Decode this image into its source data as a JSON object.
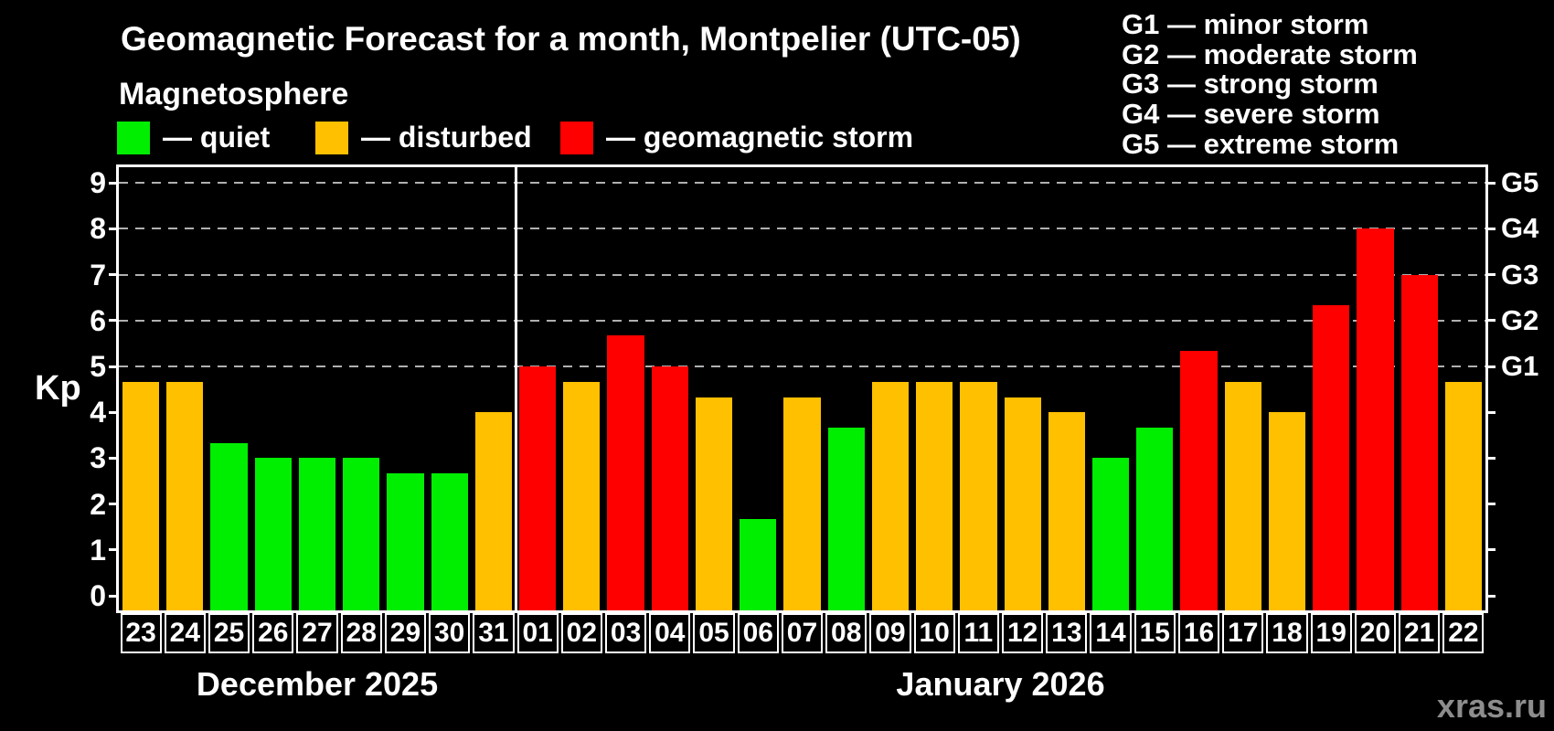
{
  "header": {
    "title": "Geomagnetic Forecast for a month, Montpelier (UTC-05)",
    "subtitle": "Magnetosphere"
  },
  "legend": {
    "items": [
      {
        "key": "quiet",
        "label": "— quiet",
        "color": "#00ee00"
      },
      {
        "key": "disturbed",
        "label": "— disturbed",
        "color": "#ffc000"
      },
      {
        "key": "storm",
        "label": "— geomagnetic storm",
        "color": "#ff0000"
      }
    ]
  },
  "g_legend": {
    "lines": [
      "G1 — minor storm",
      "G2 — moderate storm",
      "G3 — strong storm",
      "G4 — severe storm",
      "G5 — extreme storm"
    ]
  },
  "watermark": "xras.ru",
  "chart_data": {
    "type": "bar",
    "ylabel": "Kp",
    "yticks": [
      0,
      1,
      2,
      3,
      4,
      5,
      6,
      7,
      8,
      9
    ],
    "ylim": [
      -0.32,
      9.36
    ],
    "grid": "dashed horizontal lines at storm levels only",
    "gridline_levels": [
      5,
      6,
      7,
      8,
      9
    ],
    "grid_color": "#b0b0b0",
    "right_axis_labels": [
      {
        "level": 5,
        "label": "G1"
      },
      {
        "level": 6,
        "label": "G2"
      },
      {
        "level": 7,
        "label": "G3"
      },
      {
        "level": 8,
        "label": "G4"
      },
      {
        "level": 9,
        "label": "G5"
      }
    ],
    "status_colors": {
      "quiet": "#00ee00",
      "disturbed": "#ffc000",
      "storm": "#ff0000"
    },
    "months": [
      {
        "label": "December 2025",
        "bars": [
          {
            "day": "23",
            "kp": 4.67,
            "status": "disturbed"
          },
          {
            "day": "24",
            "kp": 4.67,
            "status": "disturbed"
          },
          {
            "day": "25",
            "kp": 3.33,
            "status": "quiet"
          },
          {
            "day": "26",
            "kp": 3.0,
            "status": "quiet"
          },
          {
            "day": "27",
            "kp": 3.0,
            "status": "quiet"
          },
          {
            "day": "28",
            "kp": 3.0,
            "status": "quiet"
          },
          {
            "day": "29",
            "kp": 2.67,
            "status": "quiet"
          },
          {
            "day": "30",
            "kp": 2.67,
            "status": "quiet"
          },
          {
            "day": "31",
            "kp": 4.0,
            "status": "disturbed"
          }
        ]
      },
      {
        "label": "January 2026",
        "bars": [
          {
            "day": "01",
            "kp": 5.0,
            "status": "storm"
          },
          {
            "day": "02",
            "kp": 4.67,
            "status": "disturbed"
          },
          {
            "day": "03",
            "kp": 5.67,
            "status": "storm"
          },
          {
            "day": "04",
            "kp": 5.0,
            "status": "storm"
          },
          {
            "day": "05",
            "kp": 4.33,
            "status": "disturbed"
          },
          {
            "day": "06",
            "kp": 1.67,
            "status": "quiet"
          },
          {
            "day": "07",
            "kp": 4.33,
            "status": "disturbed"
          },
          {
            "day": "08",
            "kp": 3.67,
            "status": "quiet"
          },
          {
            "day": "09",
            "kp": 4.67,
            "status": "disturbed"
          },
          {
            "day": "10",
            "kp": 4.67,
            "status": "disturbed"
          },
          {
            "day": "11",
            "kp": 4.67,
            "status": "disturbed"
          },
          {
            "day": "12",
            "kp": 4.33,
            "status": "disturbed"
          },
          {
            "day": "13",
            "kp": 4.0,
            "status": "disturbed"
          },
          {
            "day": "14",
            "kp": 3.0,
            "status": "quiet"
          },
          {
            "day": "15",
            "kp": 3.67,
            "status": "quiet"
          },
          {
            "day": "16",
            "kp": 5.33,
            "status": "storm"
          },
          {
            "day": "17",
            "kp": 4.67,
            "status": "disturbed"
          },
          {
            "day": "18",
            "kp": 4.0,
            "status": "disturbed"
          },
          {
            "day": "19",
            "kp": 6.33,
            "status": "storm"
          },
          {
            "day": "20",
            "kp": 8.0,
            "status": "storm"
          },
          {
            "day": "21",
            "kp": 7.0,
            "status": "storm"
          },
          {
            "day": "22",
            "kp": 4.67,
            "status": "disturbed"
          }
        ]
      }
    ]
  }
}
